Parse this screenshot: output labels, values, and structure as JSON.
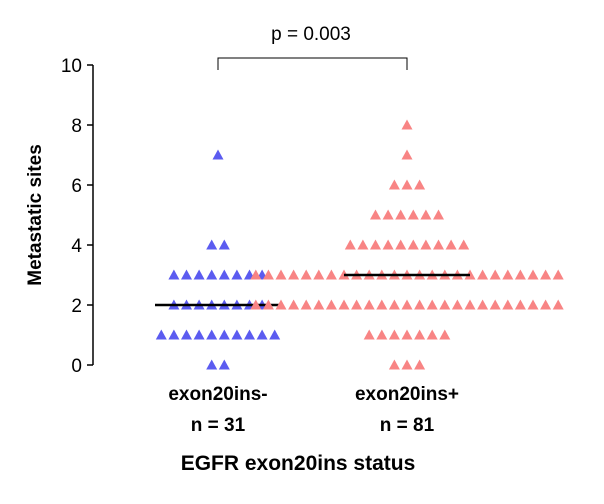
{
  "chart_data": {
    "type": "scatter",
    "annotation": "p = 0.003",
    "y_label": "Metastatic sites",
    "x_label": "EGFR exon20ins status",
    "ylim": [
      0,
      10
    ],
    "yticks": [
      0,
      2,
      4,
      6,
      8,
      10
    ],
    "series": [
      {
        "name": "exon20ins-",
        "sublabel": "n = 31",
        "color": "#5b5bf0",
        "median": 2,
        "values": [
          0,
          0,
          1,
          1,
          1,
          1,
          1,
          1,
          1,
          1,
          1,
          1,
          2,
          2,
          2,
          2,
          2,
          2,
          2,
          2,
          3,
          3,
          3,
          3,
          3,
          3,
          3,
          3,
          4,
          4,
          7
        ]
      },
      {
        "name": "exon20ins+",
        "sublabel": "n = 81",
        "color": "#f88484",
        "median": 3,
        "values": [
          0,
          0,
          0,
          1,
          1,
          1,
          1,
          1,
          1,
          1,
          2,
          2,
          2,
          2,
          2,
          2,
          2,
          2,
          2,
          2,
          2,
          2,
          2,
          2,
          2,
          2,
          2,
          2,
          2,
          2,
          2,
          2,
          2,
          2,
          2,
          3,
          3,
          3,
          3,
          3,
          3,
          3,
          3,
          3,
          3,
          3,
          3,
          3,
          3,
          3,
          3,
          3,
          3,
          3,
          3,
          3,
          3,
          3,
          3,
          3,
          4,
          4,
          4,
          4,
          4,
          4,
          4,
          4,
          4,
          4,
          5,
          5,
          5,
          5,
          5,
          5,
          6,
          6,
          6,
          7,
          8
        ]
      }
    ]
  }
}
